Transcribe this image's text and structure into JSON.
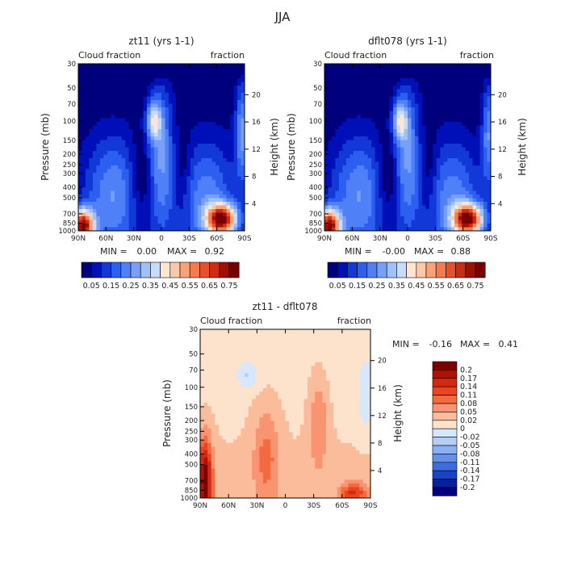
{
  "season_title": "JJA",
  "colors": {
    "frame": "#000000",
    "text": "#222222"
  },
  "panels": [
    {
      "title": "zt11 (yrs 1-1)",
      "field_left": "Cloud fraction",
      "field_right": "fraction",
      "min_label": "MIN =",
      "min_value": "0.00",
      "max_label": "MAX =",
      "max_value": "0.92"
    },
    {
      "title": "dflt078 (yrs 1-1)",
      "field_left": "Cloud fraction",
      "field_right": "fraction",
      "min_label": "MIN =",
      "min_value": "-0.00",
      "max_label": "MAX =",
      "max_value": "0.88"
    },
    {
      "title": "zt11 - dflt078",
      "field_left": "Cloud fraction",
      "field_right": "fraction",
      "min_label": "MIN =",
      "min_value": "-0.16",
      "max_label": "MAX =",
      "max_value": "0.41"
    }
  ],
  "chart_data": {
    "type": "heatmap",
    "xlabel_ticks": [
      "90N",
      "60N",
      "30N",
      "0",
      "30S",
      "60S",
      "90S"
    ],
    "x_values": [
      90,
      60,
      30,
      0,
      -30,
      -60,
      -90
    ],
    "ylabel": "Pressure (mb)",
    "y_ticks": [
      "30",
      "50",
      "70",
      "100",
      "150",
      "200",
      "250",
      "300",
      "400",
      "500",
      "700",
      "850",
      "1000"
    ],
    "y_values": [
      30,
      50,
      70,
      100,
      150,
      200,
      250,
      300,
      400,
      500,
      700,
      850,
      1000
    ],
    "ylim": [
      30,
      1000
    ],
    "y2label": "Height (km)",
    "y2_ticks": [
      "20",
      "16",
      "12",
      "8",
      "4"
    ],
    "y2_values": [
      20,
      16,
      12,
      8,
      4
    ],
    "scale_height_km": 7,
    "abs_colorbar": {
      "labels": [
        "0.05",
        "0.15",
        "0.25",
        "0.35",
        "0.45",
        "0.55",
        "0.65",
        "0.75"
      ],
      "colors": [
        "#00007f",
        "#0010b8",
        "#1238d8",
        "#2c5ef0",
        "#5080f8",
        "#78a0f8",
        "#a0c0f8",
        "#c8dcf8",
        "#fde6d4",
        "#fcc8a8",
        "#f9a27a",
        "#f47a50",
        "#e8502c",
        "#cc2c10",
        "#a01000",
        "#7a0000"
      ]
    },
    "diff_colorbar": {
      "labels": [
        "0.2",
        "0.17",
        "0.14",
        "0.11",
        "0.08",
        "0.05",
        "0.02",
        "0",
        "-0.02",
        "-0.05",
        "-0.08",
        "-0.11",
        "-0.14",
        "-0.17",
        "-0.2"
      ],
      "colors": [
        "#7a0000",
        "#b01000",
        "#d42810",
        "#ec4420",
        "#f46a40",
        "#f89470",
        "#fbbc9c",
        "#fde2cc",
        "#d8e8fa",
        "#b4cef6",
        "#8cb0f2",
        "#6490ec",
        "#3c6ce0",
        "#1a44c8",
        "#0820a0",
        "#00007f"
      ]
    }
  }
}
